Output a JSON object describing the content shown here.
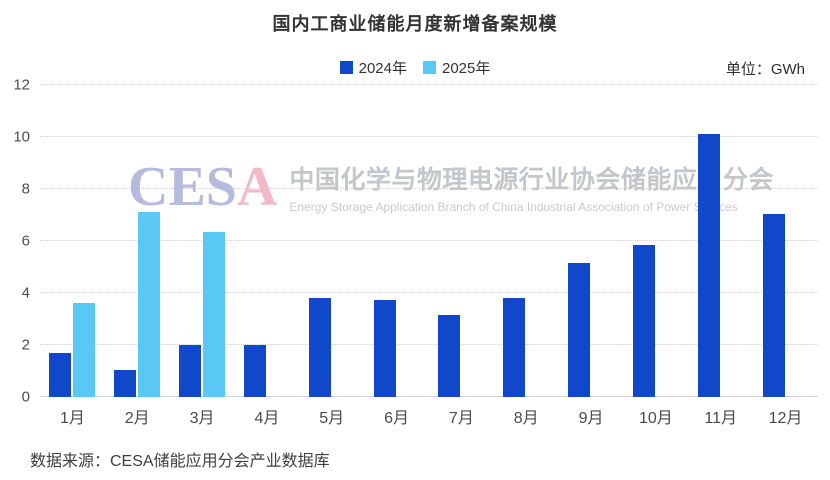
{
  "chart_data": {
    "type": "bar",
    "title": "国内工商业储能月度新增备案规模",
    "unit_label": "单位：GWh",
    "categories": [
      "1月",
      "2月",
      "3月",
      "4月",
      "5月",
      "6月",
      "7月",
      "8月",
      "9月",
      "10月",
      "11月",
      "12月"
    ],
    "series": [
      {
        "name": "2024年",
        "color": "#1148c9",
        "values": [
          1.7,
          1.05,
          2.0,
          2.0,
          3.8,
          3.75,
          3.15,
          3.8,
          5.15,
          5.85,
          10.1,
          7.05
        ]
      },
      {
        "name": "2025年",
        "color": "#5ac8f5",
        "values": [
          3.6,
          7.1,
          6.35,
          null,
          null,
          null,
          null,
          null,
          null,
          null,
          null,
          null
        ]
      }
    ],
    "xlabel": "",
    "ylabel": "",
    "ylim": [
      0,
      12
    ],
    "yticks": [
      0,
      2,
      4,
      6,
      8,
      10,
      12
    ],
    "grid": "horizontal-dotted",
    "legend_position": "top-center"
  },
  "watermark": {
    "logo_part1": "CES",
    "logo_part2": "A",
    "name_cn": "中国化学与物理电源行业协会储能应用分会",
    "name_en": "Energy Storage Application Branch of China Industrial Association of Power Sources"
  },
  "source_note": "数据来源：CESA储能应用分会产业数据库"
}
